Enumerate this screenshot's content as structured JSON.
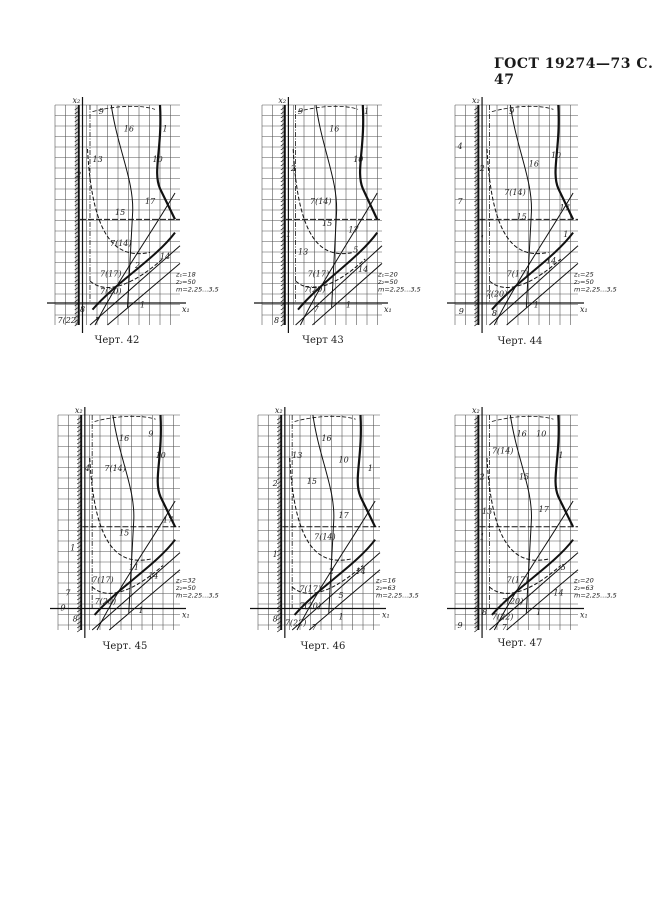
{
  "header": {
    "text": "ГОСТ 19274—73 С. 47"
  },
  "diagrams": [
    {
      "caption": "Черт. 42",
      "axis_x": "x₁",
      "axis_y": "x₂",
      "params": [
        "z₁=18",
        "z₂=50",
        "m=2,25...3,5"
      ],
      "labels": [
        "9",
        "16",
        "1",
        "13",
        "2",
        "10",
        "15",
        "17",
        "1",
        "7(14)",
        "2",
        "14",
        "7(17)",
        "7(20)",
        "8",
        "1",
        "7(22)",
        "7"
      ]
    },
    {
      "caption": "Черт 43",
      "axis_x": "x₁",
      "axis_y": "x₂",
      "params": [
        "z₁=20",
        "z₂=50",
        "m=2,25...3,5"
      ],
      "labels": [
        "9",
        "16",
        "1",
        "2",
        "10",
        "7(14)",
        "15",
        "17",
        "1",
        "13",
        "5",
        "7(17)",
        "14",
        "7(20)",
        "8",
        "1",
        "7"
      ]
    },
    {
      "caption": "Черт. 44",
      "axis_x": "x₁",
      "axis_y": "x₂",
      "params": [
        "z₁=25",
        "z₂=50",
        "m=2,25...3,5"
      ],
      "labels": [
        "9",
        "4",
        "10",
        "2",
        "16",
        "7(14)",
        "7",
        "15",
        "17",
        "1",
        "1",
        "14",
        "7(17)",
        "7(20)",
        "9",
        "8",
        "1"
      ]
    },
    {
      "caption": "Черт. 45",
      "axis_x": "x₁",
      "axis_y": "x₂",
      "params": [
        "z₁=32",
        "z₂=50",
        "m=2,25...3,5"
      ],
      "labels": [
        "16",
        "9",
        "10",
        "4",
        "7(14)",
        "17",
        "15",
        "1",
        "11",
        "14",
        "7(17)",
        "7",
        "7(20)",
        "9",
        "8",
        "1"
      ]
    },
    {
      "caption": "Черт. 46",
      "axis_x": "x₁",
      "axis_y": "x₂",
      "params": [
        "z₁=16",
        "z₂=63",
        "m=2,25...3,5"
      ],
      "labels": [
        "16",
        "13",
        "10",
        "1",
        "2",
        "15",
        "17",
        "7(14)",
        "1",
        "2",
        "14",
        "7(17)",
        "5",
        "7(20)",
        "8",
        "7(22)",
        "1",
        "7"
      ]
    },
    {
      "caption": "Черт. 47",
      "axis_x": "x₁",
      "axis_y": "x₂",
      "params": [
        "z₁=20",
        "z₂=63",
        "m=2,25...3,5"
      ],
      "labels": [
        "16",
        "10",
        "7(14)",
        "1",
        "2",
        "15",
        "13",
        "17",
        "1",
        "5",
        "7(17)",
        "14",
        "7(20)",
        "8",
        "7(22)",
        "1",
        "9",
        "7"
      ]
    }
  ]
}
